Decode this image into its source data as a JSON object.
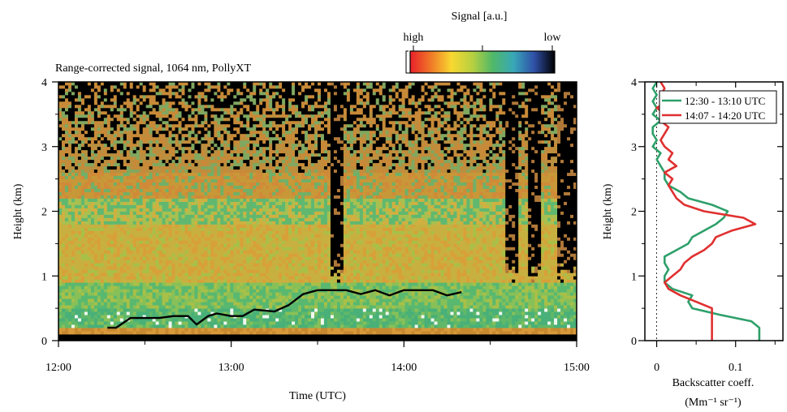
{
  "colorbar": {
    "title": "Signal [a.u.]",
    "high_label": "high",
    "low_label": "low",
    "colors": [
      "#e8202a",
      "#f07828",
      "#f8d830",
      "#b8d040",
      "#50b868",
      "#38a8b8",
      "#3050a8",
      "#000000"
    ]
  },
  "chart_data": [
    {
      "type": "heatmap",
      "title": "Range-corrected signal, 1064 nm, PollyXT",
      "xlabel": "Time (UTC)",
      "ylabel": "Height (km)",
      "x_ticks": [
        "12:00",
        "13:00",
        "14:00",
        "15:00"
      ],
      "y_ticks": [
        "0",
        "1",
        "2",
        "3",
        "4"
      ],
      "xlim": [
        "12:00",
        "15:00"
      ],
      "ylim": [
        0,
        4
      ],
      "layers": [
        {
          "feature": "aerosol",
          "from_km": 0.1,
          "to_km": 0.5
        },
        {
          "feature": "aerosol",
          "from_km": 0.5,
          "to_km": 2.3
        },
        {
          "feature": "noise",
          "from_km": 2.3,
          "to_km": 4.0
        }
      ],
      "boundary_layer_top": {
        "x": [
          "12:17",
          "12:20",
          "12:25",
          "12:30",
          "12:35",
          "12:40",
          "12:45",
          "12:48",
          "12:52",
          "12:55",
          "13:00",
          "13:04",
          "13:08",
          "13:15",
          "13:20",
          "13:25",
          "13:30",
          "13:37",
          "13:40",
          "13:45",
          "13:50",
          "13:55",
          "14:00",
          "14:05",
          "14:10",
          "14:15",
          "14:20"
        ],
        "y": [
          0.2,
          0.2,
          0.35,
          0.35,
          0.35,
          0.38,
          0.38,
          0.25,
          0.38,
          0.42,
          0.38,
          0.38,
          0.48,
          0.45,
          0.55,
          0.72,
          0.78,
          0.78,
          0.78,
          0.72,
          0.78,
          0.7,
          0.78,
          0.78,
          0.78,
          0.7,
          0.75
        ]
      },
      "clouds": [
        "13:37",
        "14:37",
        "14:45",
        "14:55",
        "14:59"
      ]
    },
    {
      "type": "line",
      "xlabel": "Backscatter coeff.",
      "xunit": "(Mm⁻¹ sr⁻¹)",
      "ylabel": "Height (km)",
      "x_ticks": [
        "0",
        "0.1"
      ],
      "y_ticks": [
        "0",
        "1",
        "2",
        "3",
        "4"
      ],
      "xlim": [
        -0.015,
        0.16
      ],
      "ylim": [
        0,
        4
      ],
      "legend_position": "top-right",
      "series": [
        {
          "name": "12:30 - 13:10 UTC",
          "color": "#2ea06a",
          "y": [
            0,
            0.1,
            0.2,
            0.3,
            0.4,
            0.5,
            0.6,
            0.7,
            0.8,
            0.9,
            1.0,
            1.1,
            1.2,
            1.3,
            1.4,
            1.5,
            1.6,
            1.7,
            1.8,
            1.9,
            2.0,
            2.1,
            2.2,
            2.3,
            2.4,
            2.5,
            2.6,
            2.7,
            2.8,
            2.9,
            3.0,
            3.1,
            3.2,
            3.3,
            3.4,
            3.5,
            3.6,
            3.7,
            3.8,
            3.9,
            4.0
          ],
          "x": [
            0.13,
            0.13,
            0.13,
            0.12,
            0.08,
            0.045,
            0.04,
            0.045,
            0.02,
            0.01,
            0.01,
            0.015,
            0.01,
            0.01,
            0.025,
            0.04,
            0.045,
            0.06,
            0.075,
            0.085,
            0.09,
            0.07,
            0.04,
            0.03,
            0.015,
            0.01,
            0.01,
            0.005,
            0.0,
            0.005,
            -0.005,
            0.0,
            -0.005,
            -0.005,
            0.005,
            -0.005,
            0.0,
            -0.005,
            0.0,
            -0.005,
            0.0
          ]
        },
        {
          "name": "14:07 - 14:20 UTC",
          "color": "#e03030",
          "y": [
            0,
            0.1,
            0.2,
            0.3,
            0.4,
            0.5,
            0.6,
            0.7,
            0.8,
            0.9,
            1.0,
            1.1,
            1.2,
            1.3,
            1.4,
            1.5,
            1.6,
            1.7,
            1.8,
            1.9,
            2.0,
            2.1,
            2.2,
            2.3,
            2.4,
            2.5,
            2.6,
            2.7,
            2.8,
            2.9,
            3.0,
            3.1,
            3.2,
            3.3,
            3.4,
            3.5,
            3.6,
            3.7,
            3.8,
            3.9,
            4.0
          ],
          "x": [
            0.07,
            0.07,
            0.07,
            0.07,
            0.07,
            0.07,
            0.05,
            0.03,
            0.015,
            0.01,
            0.02,
            0.03,
            0.035,
            0.045,
            0.06,
            0.07,
            0.075,
            0.095,
            0.125,
            0.11,
            0.06,
            0.035,
            0.025,
            0.02,
            0.015,
            0.02,
            0.01,
            0.025,
            0.015,
            0.02,
            0.01,
            0.005,
            0.01,
            0.015,
            0.005,
            0.01,
            0.0,
            0.015,
            0.005,
            0.01,
            0.005
          ]
        }
      ]
    }
  ]
}
